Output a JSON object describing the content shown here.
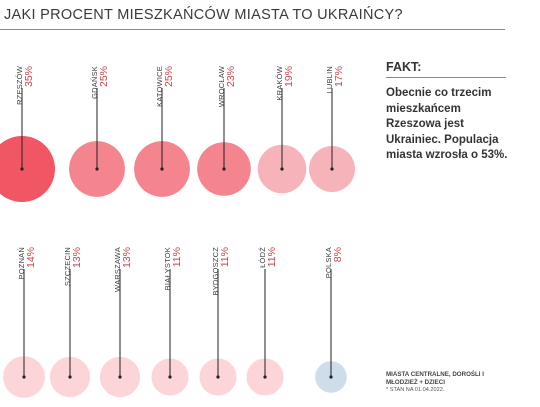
{
  "title": "JAKI PROCENT MIESZKAŃCÓW MIASTA TO UKRAIŃCY?",
  "fact": {
    "heading": "FAKT:",
    "text": "Obecnie co trzecim mieszkańcem Rzeszowa jest Ukrainiec. Populacja miasta wzrosła o 53%."
  },
  "notes": {
    "line1": "MIASTA CENTRALNE, DOROŚLI I MŁODZIEŻ + DZIECI",
    "line2": "* STAN NA 01.04.2022."
  },
  "colors": {
    "high": "#f05663",
    "mid": "#f4848e",
    "low": "#f7b3ba",
    "lowest": "#fbd5d8",
    "national": "#cfdcea",
    "label_red": "#c9464f"
  },
  "chart_data": {
    "type": "bubble",
    "title": "JAKI PROCENT MIESZKAŃCÓW MIASTA TO UKRAIŃCY?",
    "unit": "%",
    "rows": [
      [
        {
          "city": "RZESZÓW",
          "label": "35%",
          "value": 35
        },
        {
          "city": "GDAŃSK",
          "label": "25%",
          "value": 25
        },
        {
          "city": "KATOWICE",
          "label": "25%",
          "value": 25
        },
        {
          "city": "WROCŁAW",
          "label": "23%",
          "value": 23
        },
        {
          "city": "KRAKÓW",
          "label": "19%",
          "value": 19
        },
        {
          "city": "LUBLIN",
          "label": "17%",
          "value": 17
        }
      ],
      [
        {
          "city": "POZNAŃ",
          "label": "14%",
          "value": 14
        },
        {
          "city": "SZCZECIN",
          "label": "13%",
          "value": 13
        },
        {
          "city": "WARSZAWA",
          "label": "13%",
          "value": 13
        },
        {
          "city": "BIAŁYSTOK",
          "label": "11%",
          "value": 11
        },
        {
          "city": "BYDGOSZCZ",
          "label": "11%",
          "value": 11
        },
        {
          "city": "ŁÓDŹ",
          "label": "11%",
          "value": 11
        },
        {
          "city": "POLSKA",
          "label": "8%",
          "value": 8
        }
      ]
    ]
  }
}
